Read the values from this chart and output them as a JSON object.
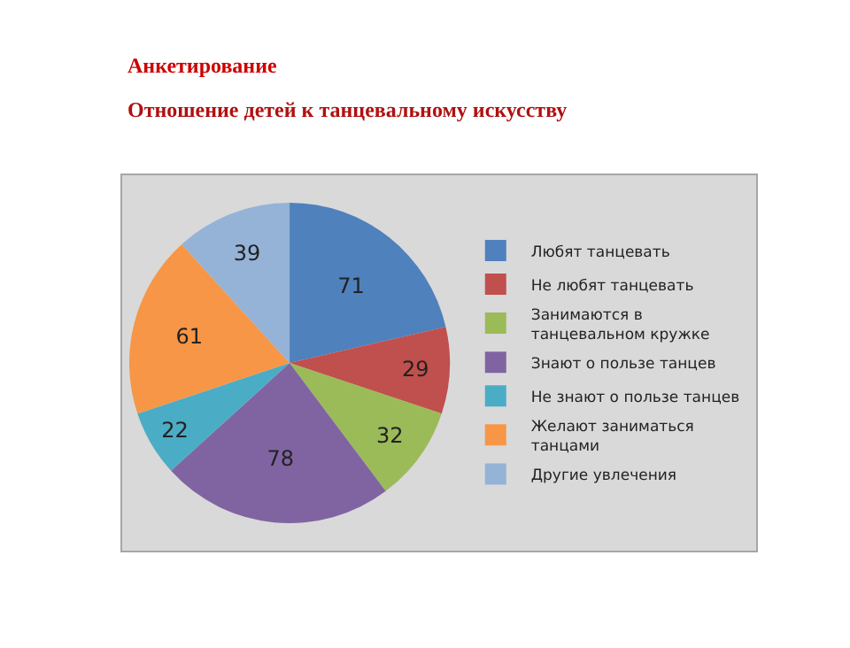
{
  "chart_data": {
    "type": "pie",
    "title": "Анкетирование",
    "subtitle": "Отношение детей к танцевальному искусству",
    "categories": [
      "Любят танцевать",
      "Не любят танцевать",
      "Занимаются в танцевальном кружке",
      "Знают о пользе танцев",
      "Не знают о пользе танцев",
      "Желают заниматься танцами",
      "Другие увлечения"
    ],
    "values": [
      71,
      29,
      32,
      78,
      22,
      61,
      39
    ],
    "colors": [
      "#4f81bd",
      "#c0504d",
      "#9bbb59",
      "#8064a2",
      "#4bacc6",
      "#f79646",
      "#95b3d7"
    ],
    "data_labels": true,
    "legend": "right"
  }
}
